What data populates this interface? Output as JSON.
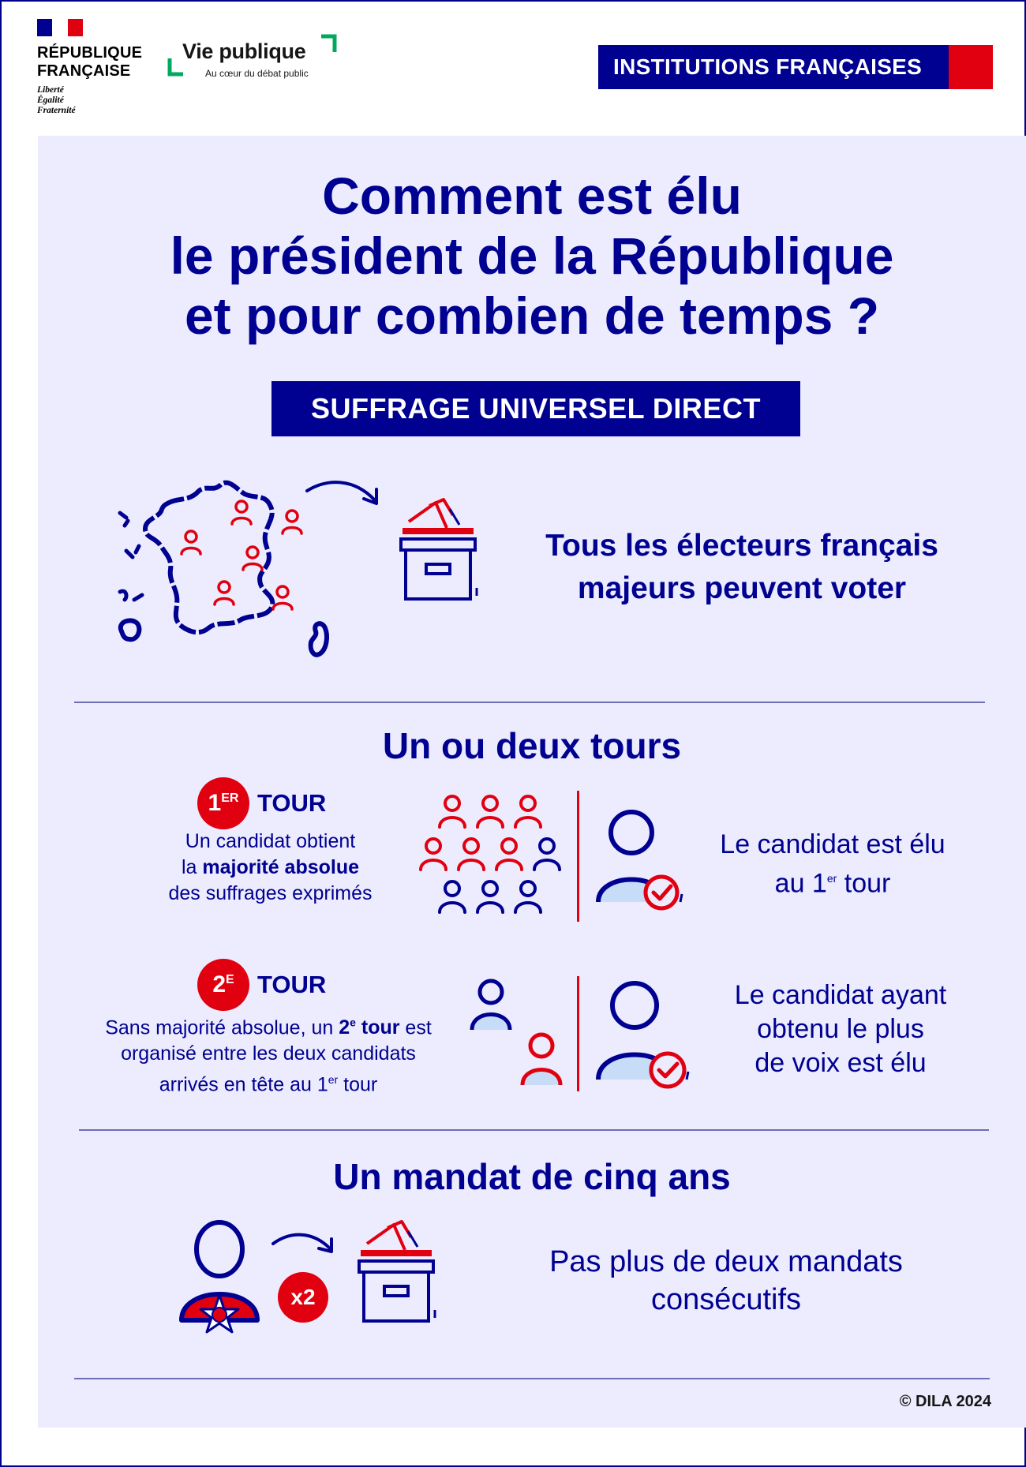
{
  "header": {
    "rf_name_line1": "RÉPUBLIQUE",
    "rf_name_line2": "FRANÇAISE",
    "rf_motto_1": "Liberté",
    "rf_motto_2": "Égalité",
    "rf_motto_3": "Fraternité",
    "vp_name": "Vie publique",
    "vp_tagline": "Au cœur du débat public",
    "category": "INSTITUTIONS FRANÇAISES"
  },
  "title": {
    "line1": "Comment est élu",
    "line2": "le président de la République",
    "line3": "et pour combien de temps ?"
  },
  "suffrage": {
    "label": "SUFFRAGE UNIVERSEL DIRECT",
    "voters_line1": "Tous les électeurs français",
    "voters_line2": "majeurs peuvent voter"
  },
  "tours": {
    "section_title": "Un ou deux tours",
    "first": {
      "badge_num": "1",
      "badge_sup": "ER",
      "label": "TOUR",
      "desc_line1": "Un candidat obtient",
      "desc_line2_pre": "la ",
      "desc_line2_bold": "majorité absolue",
      "desc_line3": "des suffrages exprimés",
      "result_line1": "Le candidat est élu",
      "result_line2_pre": "au 1",
      "result_line2_sup": "er",
      "result_line2_post": " tour"
    },
    "second": {
      "badge_num": "2",
      "badge_sup": "E",
      "label": "TOUR",
      "desc_line1_pre": "Sans majorité absolue, un ",
      "desc_line1_bold": "2",
      "desc_line1_bold_sup": "e",
      "desc_line1_bold2": " tour",
      "desc_line1_post": " est",
      "desc_line2": "organisé entre les deux candidats",
      "desc_line3_pre": "arrivés en tête au 1",
      "desc_line3_sup": "er",
      "desc_line3_post": " tour",
      "result_line1": "Le candidat ayant",
      "result_line2": "obtenu le plus",
      "result_line3": "de voix est élu"
    }
  },
  "mandat": {
    "section_title": "Un mandat de cinq ans",
    "multiplier": "x2",
    "text_line1": "Pas plus de deux mandats",
    "text_line2": "consécutifs"
  },
  "footer": {
    "copyright": "© DILA 2024"
  },
  "colors": {
    "navy": "#000091",
    "red": "#e1000f",
    "panel": "#ececfe",
    "light_blue": "#c6dcf7",
    "green": "#00a95f"
  },
  "icons": [
    "france-map-icon",
    "ballot-box-icon",
    "person-icon",
    "person-check-icon",
    "medal-icon",
    "arrow-icon"
  ]
}
